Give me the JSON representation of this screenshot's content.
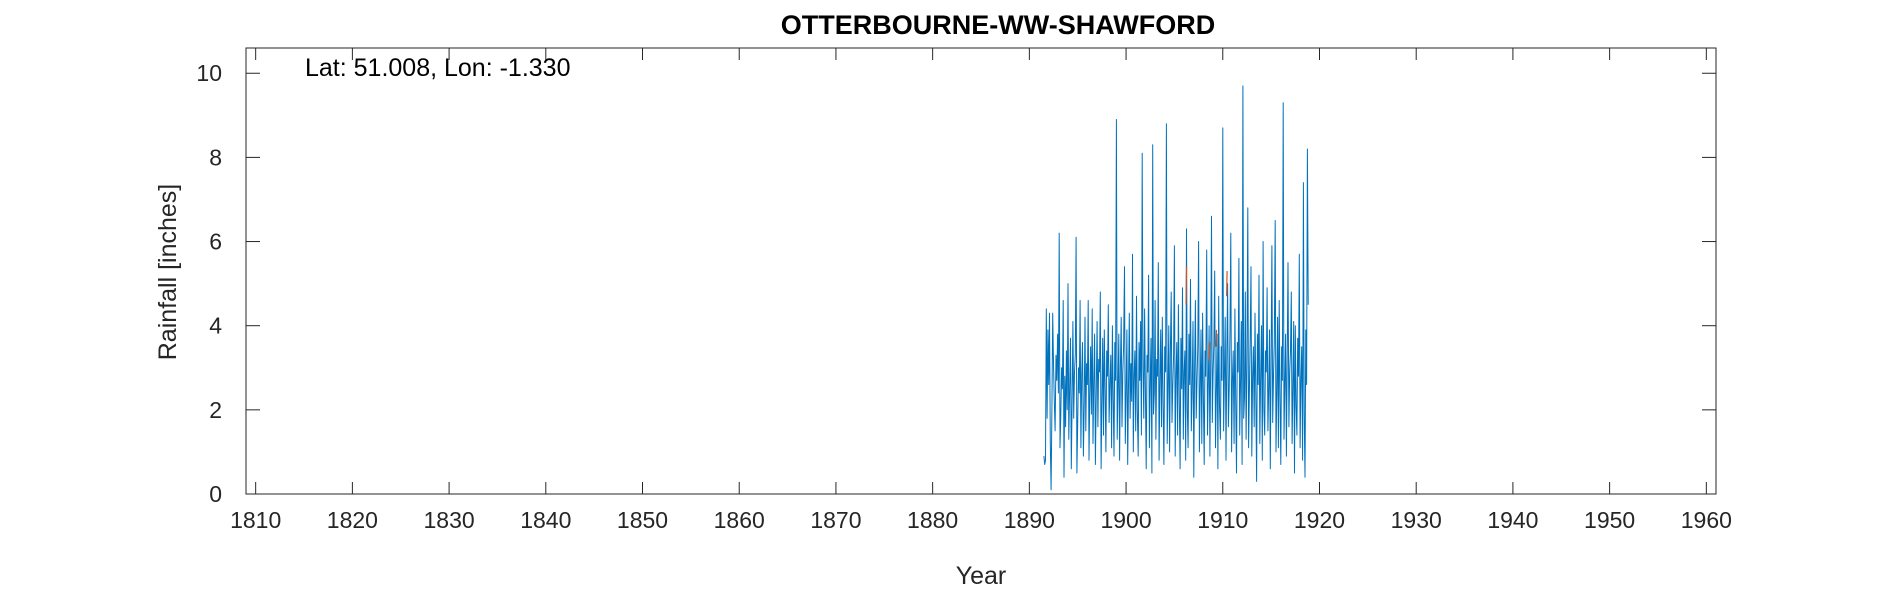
{
  "chart_data": {
    "type": "line",
    "title": "OTTERBOURNE-WW-SHAWFORD",
    "xlabel": "Year",
    "ylabel": "Rainfall [inches]",
    "annotation": "Lat: 51.008, Lon: -1.330",
    "xlim": [
      1809,
      1961
    ],
    "ylim": [
      0,
      10.6
    ],
    "xticks": [
      1810,
      1820,
      1830,
      1840,
      1850,
      1860,
      1870,
      1880,
      1890,
      1900,
      1910,
      1920,
      1930,
      1940,
      1950,
      1960
    ],
    "yticks": [
      0,
      2,
      4,
      6,
      8,
      10
    ],
    "grid": false,
    "series_colors": [
      "#0072bd",
      "#d95319"
    ],
    "series": [
      {
        "x_start": 1891.5,
        "x_step": 0.08333,
        "values": [
          0.9,
          0.7,
          0.8,
          4.4,
          1.8,
          3.9,
          2.6,
          4.3,
          1.2,
          0.1,
          2.0,
          4.3,
          3.1,
          2.2,
          1.5,
          3.3,
          2.7,
          3.8,
          2.4,
          6.2,
          1.1,
          1.9,
          3.0,
          2.5,
          4.6,
          0.4,
          2.8,
          1.6,
          3.4,
          2.0,
          5.0,
          1.3,
          2.6,
          3.7,
          0.6,
          2.2,
          4.1,
          1.8,
          2.9,
          3.3,
          6.1,
          0.5,
          1.7,
          3.0,
          2.4,
          4.6,
          1.1,
          2.8,
          3.6,
          0.9,
          2.1,
          4.2,
          1.5,
          3.1,
          2.6,
          4.6,
          0.8,
          2.4,
          3.5,
          1.9,
          4.4,
          1.2,
          2.7,
          3.8,
          0.7,
          2.3,
          4.1,
          1.6,
          3.2,
          2.9,
          4.8,
          0.6,
          2.2,
          3.7,
          1.4,
          3.9,
          2.5,
          1.0,
          3.4,
          2.8,
          4.5,
          1.7,
          2.6,
          3.3,
          1.1,
          4.0,
          2.3,
          0.9,
          3.6,
          2.7,
          8.9,
          1.3,
          2.5,
          3.8,
          0.8,
          3.0,
          4.2,
          1.6,
          2.9,
          3.5,
          5.4,
          1.2,
          2.4,
          3.9,
          0.7,
          2.6,
          4.3,
          1.8,
          3.1,
          2.2,
          5.7,
          1.0,
          2.8,
          3.4,
          1.5,
          4.7,
          2.0,
          0.9,
          3.6,
          2.7,
          4.1,
          1.4,
          8.1,
          3.0,
          1.8,
          4.4,
          2.5,
          0.6,
          3.3,
          2.9,
          5.2,
          1.1,
          2.6,
          3.7,
          0.5,
          8.3,
          1.9,
          2.4,
          4.6,
          1.3,
          3.2,
          2.8,
          5.5,
          0.8,
          2.7,
          3.9,
          1.6,
          4.2,
          2.1,
          0.7,
          3.5,
          2.9,
          8.8,
          1.2,
          2.5,
          4.0,
          1.0,
          3.4,
          4.8,
          1.7,
          2.6,
          3.3,
          5.9,
          0.9,
          2.8,
          3.6,
          1.4,
          4.5,
          2.2,
          0.6,
          3.7,
          2.5,
          4.9,
          1.3,
          2.9,
          3.4,
          0.8,
          6.3,
          2.0,
          1.1,
          3.8,
          2.6,
          5.1,
          1.5,
          2.4,
          4.1,
          0.4,
          3.0,
          4.6,
          1.8,
          2.7,
          3.5,
          6.0,
          1.0,
          2.5,
          3.9,
          1.2,
          4.3,
          2.3,
          0.7,
          3.4,
          2.8,
          5.8,
          1.4,
          2.6,
          4.0,
          0.9,
          3.2,
          6.6,
          1.7,
          2.9,
          3.6,
          5.3,
          1.1,
          2.4,
          3.8,
          0.6,
          4.7,
          2.1,
          1.3,
          3.5,
          2.7,
          8.7,
          1.5,
          2.8,
          4.2,
          0.8,
          3.3,
          5.0,
          1.6,
          2.5,
          3.9,
          6.2,
          1.0,
          2.7,
          3.4,
          1.2,
          4.4,
          2.2,
          0.5,
          3.6,
          2.9,
          5.6,
          1.4,
          2.6,
          4.1,
          0.7,
          9.7,
          1.8,
          2.3,
          4.8,
          1.3,
          3.1,
          6.8,
          1.1,
          2.5,
          3.7,
          5.4,
          0.9,
          2.8,
          3.5,
          1.6,
          4.3,
          2.4,
          0.3,
          3.8,
          2.6,
          5.2,
          1.2,
          2.7,
          4.0,
          0.8,
          6.0,
          2.0,
          1.4,
          3.4,
          2.9,
          4.9,
          1.5,
          2.5,
          3.9,
          0.6,
          3.2,
          5.9,
          1.7,
          2.8,
          3.6,
          6.5,
          1.0,
          2.4,
          4.2,
          1.1,
          4.6,
          2.3,
          0.7,
          3.5,
          2.7,
          9.3,
          1.3,
          2.6,
          3.8,
          0.9,
          3.3,
          5.5,
          1.6,
          2.9,
          3.4,
          4.8,
          1.2,
          2.5,
          4.1,
          0.5,
          4.0,
          2.1,
          1.4,
          3.7,
          2.8,
          5.7,
          1.1,
          2.7,
          3.5,
          0.8,
          7.4,
          1.9,
          0.4,
          3.9,
          2.6,
          8.2,
          4.5
        ]
      },
      {
        "x": [
          1906.2,
          1906.25,
          1908.6,
          1908.65,
          1909.3,
          1909.35,
          1910.4,
          1910.45
        ],
        "values": [
          4.5,
          5.4,
          3.2,
          3.6,
          3.5,
          3.9,
          4.7,
          5.3
        ]
      }
    ]
  }
}
